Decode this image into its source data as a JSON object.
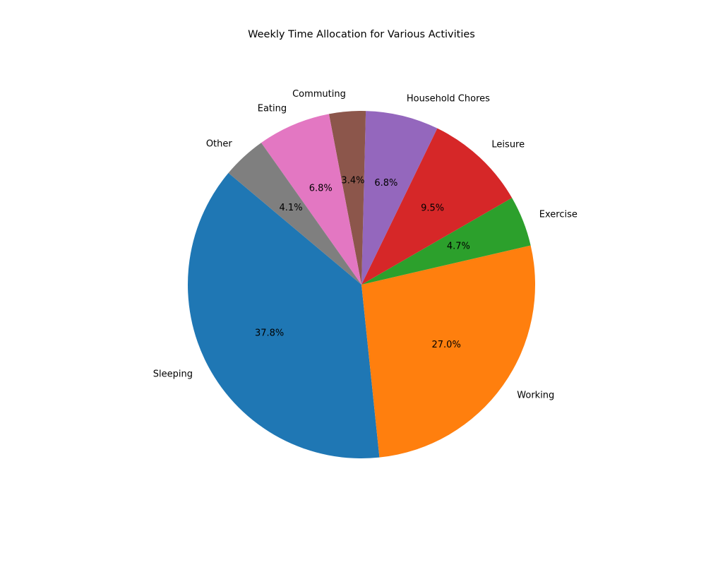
{
  "chart_data": {
    "type": "pie",
    "title": "Weekly Time Allocation for Various Activities",
    "categories": [
      "Sleeping",
      "Working",
      "Exercise",
      "Leisure",
      "Household Chores",
      "Commuting",
      "Eating",
      "Other"
    ],
    "values": [
      37.8,
      27.0,
      4.7,
      9.5,
      6.8,
      3.4,
      6.8,
      4.1
    ],
    "percent_labels": [
      "37.8%",
      "27.0%",
      "4.7%",
      "9.5%",
      "6.8%",
      "3.4%",
      "6.8%",
      "4.1%"
    ],
    "colors": [
      "#1f77b4",
      "#ff7f0e",
      "#2ca02c",
      "#d62728",
      "#9467bd",
      "#8c564b",
      "#e377c2",
      "#7f7f7f"
    ],
    "start_angle_deg": 140,
    "direction": "counterclockwise",
    "legend": "none"
  }
}
